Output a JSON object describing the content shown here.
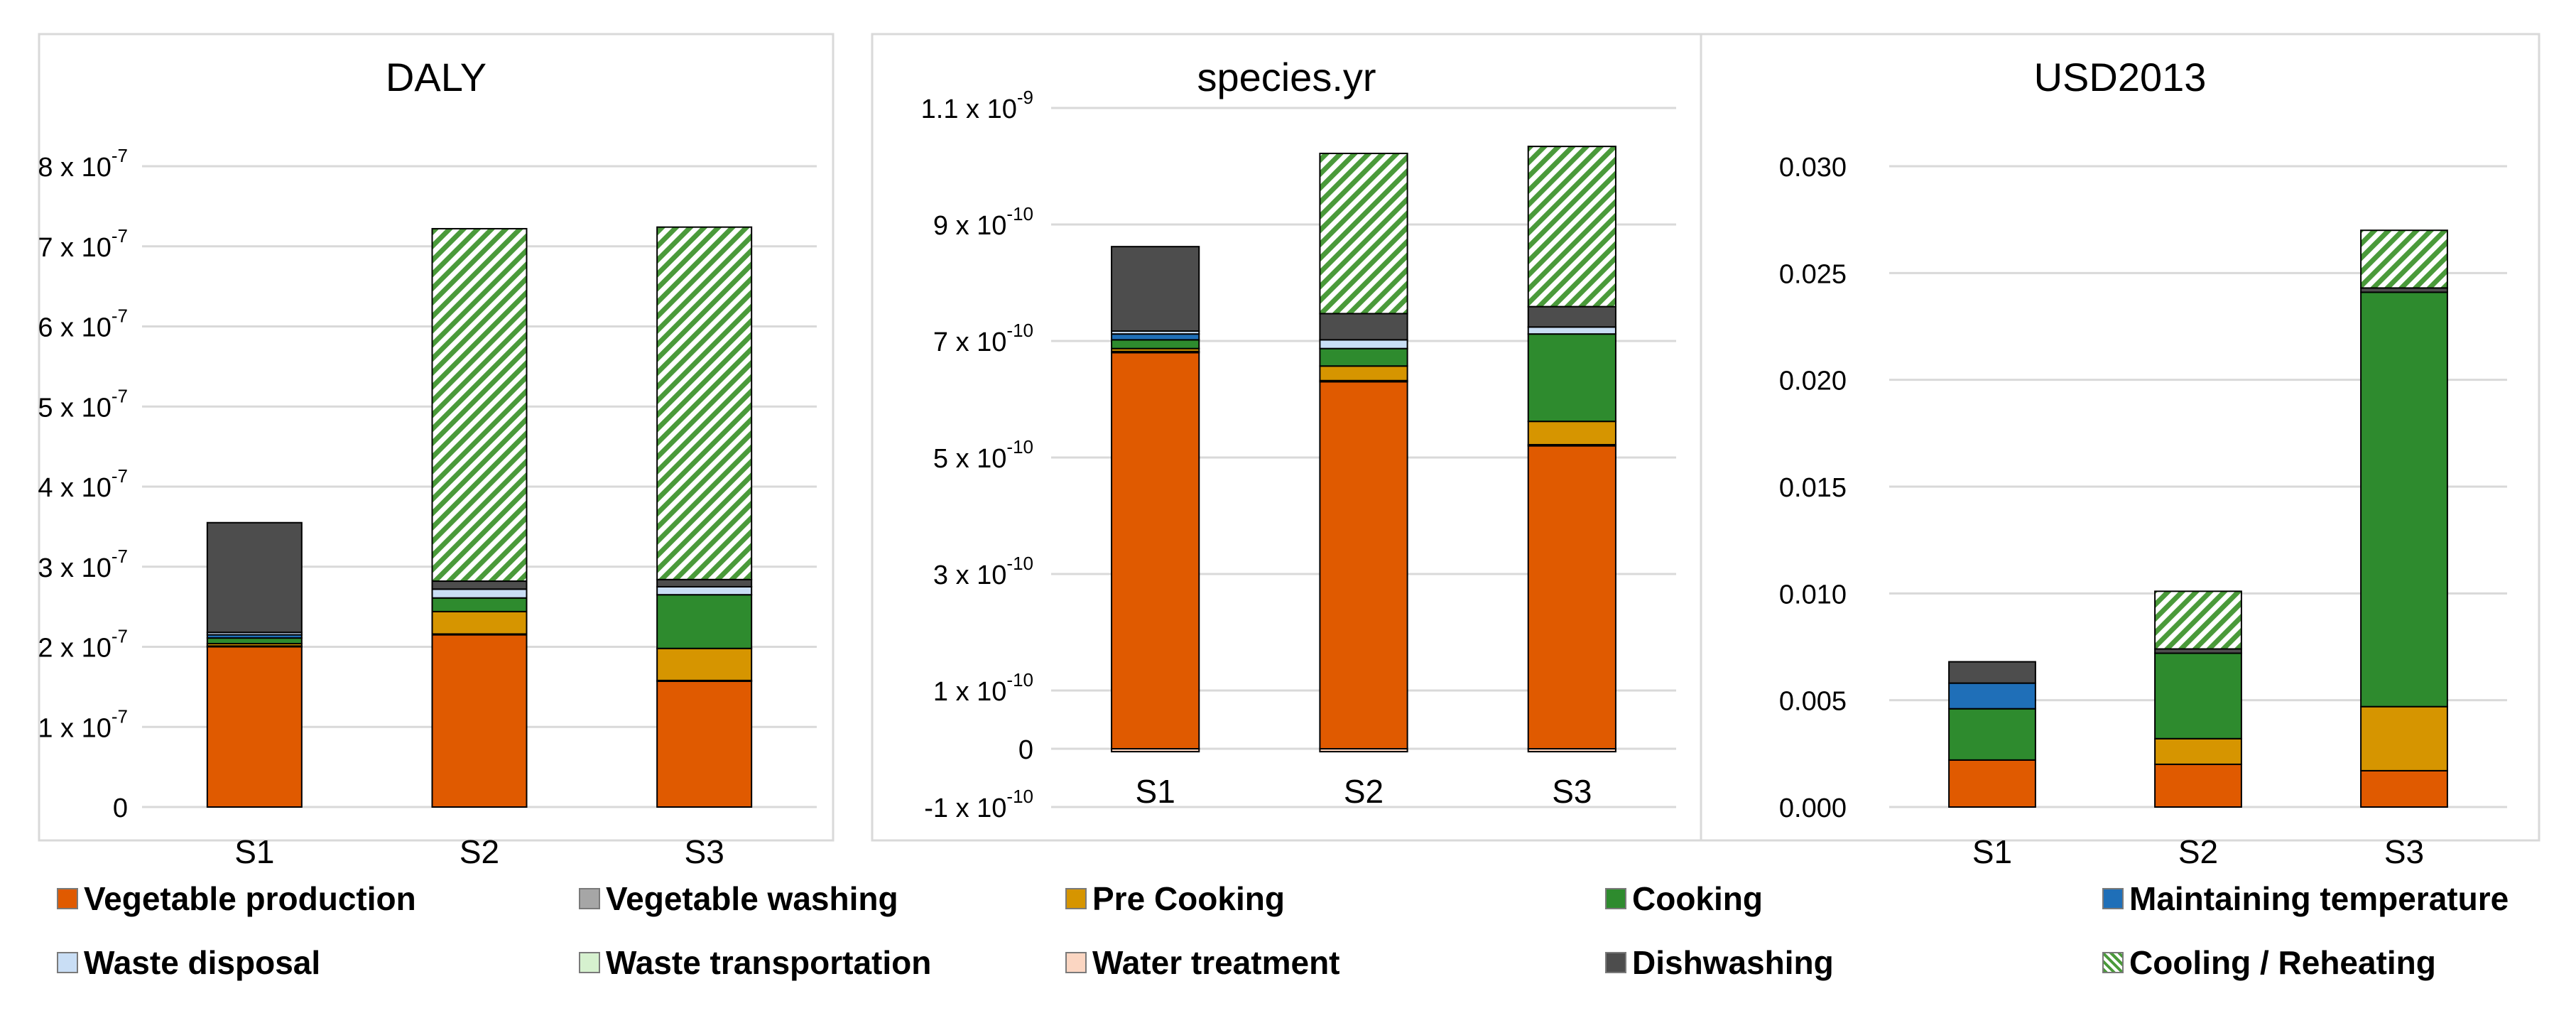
{
  "colors": {
    "vegetable_production": "#e05a00",
    "vegetable_washing": "#a6a6a6",
    "pre_cooking": "#d69500",
    "cooking": "#2e8b2e",
    "maintaining_temperature": "#1f6fb8",
    "waste_disposal": "#c9def5",
    "waste_transportation": "#d6f1cf",
    "water_treatment": "#fbd6c2",
    "dishwashing": "#4d4d4d",
    "cooling_reheating": "#4a9a3a"
  },
  "legend": [
    {
      "key": "vegetable_production",
      "label": "Vegetable production"
    },
    {
      "key": "vegetable_washing",
      "label": "Vegetable washing"
    },
    {
      "key": "pre_cooking",
      "label": "Pre Cooking"
    },
    {
      "key": "cooking",
      "label": "Cooking"
    },
    {
      "key": "maintaining_temperature",
      "label": "Maintaining temperature"
    },
    {
      "key": "waste_disposal",
      "label": "Waste disposal"
    },
    {
      "key": "waste_transportation",
      "label": " Waste transportation"
    },
    {
      "key": "water_treatment",
      "label": "Water treatment"
    },
    {
      "key": "dishwashing",
      "label": "Dishwashing"
    },
    {
      "key": "cooling_reheating",
      "label": "Cooling / Reheating"
    }
  ],
  "chart_data": [
    {
      "type": "bar",
      "stacked": true,
      "title": "DALY",
      "categories": [
        "S1",
        "S2",
        "S3"
      ],
      "ylim": [
        0,
        8e-07
      ],
      "tick_values": [
        0,
        1e-07,
        2e-07,
        3e-07,
        4e-07,
        5e-07,
        6e-07,
        7e-07,
        8e-07
      ],
      "tick_labels": [
        {
          "base": "0",
          "exp": ""
        },
        {
          "base": "1 x 10",
          "exp": "-7"
        },
        {
          "base": "2 x 10",
          "exp": "-7"
        },
        {
          "base": "3 x 10",
          "exp": "-7"
        },
        {
          "base": "4 x 10",
          "exp": "-7"
        },
        {
          "base": "5 x 10",
          "exp": "-7"
        },
        {
          "base": "6 x 10",
          "exp": "-7"
        },
        {
          "base": "7 x 10",
          "exp": "-7"
        },
        {
          "base": "8 x 10",
          "exp": "-7"
        }
      ],
      "series": [
        {
          "key": "vegetable_production",
          "name": "Vegetable production",
          "values": [
            2e-07,
            2.15e-07,
            1.57e-07
          ]
        },
        {
          "key": "vegetable_washing",
          "name": "Vegetable washing",
          "values": [
            1e-09,
            1e-09,
            1e-09
          ]
        },
        {
          "key": "pre_cooking",
          "name": "Pre Cooking",
          "values": [
            3e-09,
            2.8e-08,
            4e-08
          ]
        },
        {
          "key": "cooking",
          "name": "Cooking",
          "values": [
            7e-09,
            1.7e-08,
            6.7e-08
          ]
        },
        {
          "key": "maintaining_temperature",
          "name": "Maintaining temperature",
          "values": [
            4e-09,
            0.0,
            0.0
          ]
        },
        {
          "key": "waste_disposal",
          "name": "Waste disposal",
          "values": [
            3e-09,
            1.1e-08,
            1e-08
          ]
        },
        {
          "key": "waste_transportation",
          "name": "Waste transportation",
          "values": [
            0.0,
            0.0,
            0.0
          ]
        },
        {
          "key": "water_treatment",
          "name": "Water treatment",
          "values": [
            0.0,
            0.0,
            0.0
          ]
        },
        {
          "key": "dishwashing",
          "name": "Dishwashing",
          "values": [
            1.37e-07,
            1e-08,
            9e-09
          ]
        },
        {
          "key": "cooling_reheating",
          "name": "Cooling / Reheating",
          "values": [
            0.0,
            4.4e-07,
            4.4e-07
          ]
        }
      ]
    },
    {
      "type": "bar",
      "stacked": true,
      "title": "species.yr",
      "categories": [
        "S1",
        "S2",
        "S3"
      ],
      "ylim": [
        -1e-10,
        1.1e-09
      ],
      "tick_values": [
        -1e-10,
        0,
        1e-10,
        3e-10,
        5e-10,
        7e-10,
        9e-10,
        1.1e-09
      ],
      "tick_labels": [
        {
          "base": "-1 x 10",
          "exp": "-10"
        },
        {
          "base": "0",
          "exp": ""
        },
        {
          "base": "1 x 10",
          "exp": "-10"
        },
        {
          "base": "3 x 10",
          "exp": "-10"
        },
        {
          "base": "5 x 10",
          "exp": "-10"
        },
        {
          "base": "7 x 10",
          "exp": "-10"
        },
        {
          "base": "9 x 10",
          "exp": "-10"
        },
        {
          "base": "1.1 x 10",
          "exp": "-9"
        }
      ],
      "series": [
        {
          "key": "vegetable_production",
          "name": "Vegetable production",
          "values": [
            6.8e-10,
            6.3e-10,
            5.2e-10
          ]
        },
        {
          "key": "vegetable_washing",
          "name": "Vegetable washing",
          "values": [
            2e-12,
            2e-12,
            2e-12
          ]
        },
        {
          "key": "pre_cooking",
          "name": "Pre Cooking",
          "values": [
            5e-12,
            2.5e-11,
            4e-11
          ]
        },
        {
          "key": "cooking",
          "name": "Cooking",
          "values": [
            1.5e-11,
            3e-11,
            1.5e-10
          ]
        },
        {
          "key": "maintaining_temperature",
          "name": "Maintaining temperature",
          "values": [
            1e-11,
            0.0,
            0.0
          ]
        },
        {
          "key": "waste_disposal",
          "name": "Waste disposal",
          "values": [
            5e-12,
            1.5e-11,
            1.2e-11
          ]
        },
        {
          "key": "waste_transportation",
          "name": "Waste transportation",
          "values": [
            0.0,
            0.0,
            0.0
          ]
        },
        {
          "key": "water_treatment",
          "name": "Water treatment",
          "values": [
            -5e-12,
            -5e-12,
            -5e-12
          ]
        },
        {
          "key": "dishwashing",
          "name": "Dishwashing",
          "values": [
            1.45e-10,
            4.5e-11,
            3.5e-11
          ]
        },
        {
          "key": "cooling_reheating",
          "name": "Cooling / Reheating",
          "values": [
            0.0,
            2.75e-10,
            2.75e-10
          ]
        }
      ]
    },
    {
      "type": "bar",
      "stacked": true,
      "title": "USD2013",
      "categories": [
        "S1",
        "S2",
        "S3"
      ],
      "ylim": [
        0,
        0.03
      ],
      "tick_values": [
        0,
        0.005,
        0.01,
        0.015,
        0.02,
        0.025,
        0.03
      ],
      "tick_labels": [
        {
          "base": "0.000",
          "exp": ""
        },
        {
          "base": "0.005",
          "exp": ""
        },
        {
          "base": "0.010",
          "exp": ""
        },
        {
          "base": "0.015",
          "exp": ""
        },
        {
          "base": "0.020",
          "exp": ""
        },
        {
          "base": "0.025",
          "exp": ""
        },
        {
          "base": "0.030",
          "exp": ""
        }
      ],
      "series": [
        {
          "key": "vegetable_production",
          "name": "Vegetable production",
          "values": [
            0.0022,
            0.002,
            0.0017
          ]
        },
        {
          "key": "vegetable_washing",
          "name": "Vegetable washing",
          "values": [
            0.0,
            0.0,
            0.0
          ]
        },
        {
          "key": "pre_cooking",
          "name": "Pre Cooking",
          "values": [
            0.0,
            0.0012,
            0.003
          ]
        },
        {
          "key": "cooking",
          "name": "Cooking",
          "values": [
            0.0024,
            0.004,
            0.0194
          ]
        },
        {
          "key": "maintaining_temperature",
          "name": "Maintaining temperature",
          "values": [
            0.0012,
            0.0,
            0.0
          ]
        },
        {
          "key": "waste_disposal",
          "name": "Waste disposal",
          "values": [
            0.0,
            0.0,
            0.0
          ]
        },
        {
          "key": "waste_transportation",
          "name": "Waste transportation",
          "values": [
            0.0,
            0.0,
            0.0
          ]
        },
        {
          "key": "water_treatment",
          "name": "Water treatment",
          "values": [
            0.0,
            0.0,
            0.0
          ]
        },
        {
          "key": "dishwashing",
          "name": "Dishwashing",
          "values": [
            0.001,
            0.0002,
            0.0002
          ]
        },
        {
          "key": "cooling_reheating",
          "name": "Cooling / Reheating",
          "values": [
            0.0,
            0.0027,
            0.0027
          ]
        }
      ]
    }
  ]
}
